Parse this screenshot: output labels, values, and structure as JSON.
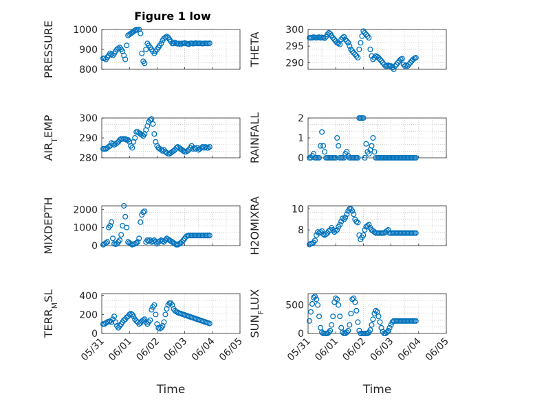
{
  "figure": {
    "title": "Figure 1 low"
  },
  "marker_color": "#0072bd",
  "grid": "dotted",
  "chart_data": [
    {
      "type": "scatter",
      "ylabel": "PRESSURE",
      "yticks": [
        "800",
        "900",
        "1000"
      ],
      "ylim": [
        800,
        1000
      ],
      "xlabel": "",
      "xticks": [],
      "x": [
        0.05,
        0.1,
        0.15,
        0.2,
        0.25,
        0.3,
        0.35,
        0.4,
        0.45,
        0.5,
        0.55,
        0.6,
        0.65,
        0.7,
        0.75,
        0.8,
        0.85,
        0.9,
        0.95,
        1.0,
        1.05,
        1.1,
        1.15,
        1.2,
        1.25,
        1.3,
        1.35,
        1.4,
        1.45,
        1.5,
        1.55,
        1.6,
        1.65,
        1.7,
        1.75,
        1.8,
        1.85,
        1.9,
        1.95,
        2.0,
        2.05,
        2.1,
        2.15,
        2.2,
        2.25,
        2.3,
        2.35,
        2.4,
        2.45,
        2.5,
        2.55,
        2.6,
        2.65,
        2.7,
        2.75,
        2.8,
        2.85,
        2.9,
        2.95,
        3.0,
        3.05,
        3.1,
        3.15,
        3.2,
        3.25,
        3.3,
        3.35,
        3.4,
        3.45,
        3.5,
        3.55,
        3.6,
        3.65,
        3.7,
        3.75,
        3.8,
        3.85,
        3.9
      ],
      "y": [
        855,
        855,
        850,
        860,
        870,
        880,
        875,
        870,
        880,
        890,
        900,
        905,
        910,
        900,
        890,
        870,
        850,
        920,
        970,
        975,
        980,
        985,
        990,
        995,
        1000,
        998,
        1000,
        980,
        880,
        840,
        830,
        900,
        930,
        920,
        910,
        900,
        890,
        880,
        890,
        900,
        910,
        920,
        930,
        945,
        955,
        960,
        965,
        960,
        950,
        940,
        930,
        930,
        935,
        930,
        928,
        930,
        925,
        930,
        930,
        932,
        930,
        928,
        926,
        930,
        931,
        929,
        930,
        932,
        930,
        930,
        931,
        930,
        929,
        930,
        931,
        930,
        930,
        931
      ],
      "xmax": 3.9
    },
    {
      "type": "scatter",
      "ylabel": "THETA",
      "yticks": [
        "290",
        "295",
        "300"
      ],
      "ylim": [
        288,
        300
      ],
      "xlabel": "",
      "xticks": [],
      "x": [
        0.05,
        0.1,
        0.15,
        0.2,
        0.25,
        0.3,
        0.35,
        0.4,
        0.45,
        0.5,
        0.55,
        0.6,
        0.65,
        0.7,
        0.75,
        0.8,
        0.85,
        0.9,
        0.95,
        1.0,
        1.05,
        1.1,
        1.15,
        1.2,
        1.25,
        1.3,
        1.35,
        1.4,
        1.45,
        1.5,
        1.55,
        1.6,
        1.65,
        1.7,
        1.75,
        1.8,
        1.85,
        1.9,
        1.95,
        2.0,
        2.05,
        2.1,
        2.15,
        2.2,
        2.25,
        2.3,
        2.35,
        2.4,
        2.45,
        2.5,
        2.55,
        2.6,
        2.65,
        2.7,
        2.75,
        2.8,
        2.85,
        2.9,
        2.95,
        3.0,
        3.05,
        3.1,
        3.15,
        3.2,
        3.25,
        3.3,
        3.35,
        3.4,
        3.45,
        3.5,
        3.55,
        3.6,
        3.65,
        3.7,
        3.75,
        3.8,
        3.85,
        3.9
      ],
      "y": [
        297.5,
        297.5,
        297.5,
        297.7,
        297.6,
        297.5,
        297.6,
        297.7,
        297.5,
        297.6,
        297.5,
        297.4,
        297.8,
        298.5,
        299,
        298.7,
        298.2,
        297.5,
        297,
        296.5,
        296,
        295.8,
        295.5,
        297,
        297.5,
        297.8,
        297,
        296.5,
        296,
        295,
        294,
        293.5,
        293,
        292.5,
        292,
        291.5,
        294,
        296,
        298,
        299.5,
        299,
        298.5,
        298,
        297.5,
        294,
        292,
        291,
        291.5,
        292,
        291.8,
        291.5,
        291,
        290.5,
        290,
        289.5,
        289,
        289,
        289.2,
        289,
        289,
        288.5,
        288,
        289,
        289.5,
        290,
        290.5,
        291,
        291.2,
        289.5,
        289,
        289.2,
        289,
        289.5,
        290,
        290.5,
        291,
        291.3,
        291.5
      ],
      "xmax": 3.9
    },
    {
      "type": "scatter",
      "ylabel": "AIR_TEMP",
      "yticks": [
        "280",
        "290",
        "300"
      ],
      "ylim": [
        280,
        300
      ],
      "xlabel": "",
      "xticks": [],
      "x": [
        0.05,
        0.1,
        0.15,
        0.2,
        0.25,
        0.3,
        0.35,
        0.4,
        0.45,
        0.5,
        0.55,
        0.6,
        0.65,
        0.7,
        0.75,
        0.8,
        0.85,
        0.9,
        0.95,
        1.0,
        1.05,
        1.1,
        1.15,
        1.2,
        1.25,
        1.3,
        1.35,
        1.4,
        1.45,
        1.5,
        1.55,
        1.6,
        1.65,
        1.7,
        1.75,
        1.8,
        1.85,
        1.9,
        1.95,
        2.0,
        2.05,
        2.1,
        2.15,
        2.2,
        2.25,
        2.3,
        2.35,
        2.4,
        2.45,
        2.5,
        2.55,
        2.6,
        2.65,
        2.7,
        2.75,
        2.8,
        2.85,
        2.9,
        2.95,
        3.0,
        3.05,
        3.1,
        3.15,
        3.2,
        3.25,
        3.3,
        3.35,
        3.4,
        3.45,
        3.5,
        3.55,
        3.6,
        3.65,
        3.7,
        3.75,
        3.8,
        3.85,
        3.9
      ],
      "y": [
        284.5,
        284.5,
        284.5,
        285,
        285.5,
        286,
        287.5,
        287,
        286.5,
        287,
        287.5,
        288,
        289,
        289.5,
        289.5,
        289.5,
        289.5,
        289,
        289,
        288,
        286,
        285,
        288,
        290,
        293,
        293,
        292.5,
        292,
        291.5,
        291,
        292,
        294,
        296,
        298,
        299,
        299.5,
        297,
        292,
        288,
        286,
        285,
        284.5,
        284,
        283.5,
        284,
        283,
        282.5,
        282,
        282,
        282.5,
        283,
        283.5,
        284,
        285,
        285.5,
        285,
        284.5,
        284,
        283.5,
        283,
        283,
        283.5,
        284,
        285,
        286,
        284.5,
        285,
        284.5,
        285,
        284,
        284.5,
        285,
        285.5,
        285,
        285.5,
        285,
        285,
        285.5
      ],
      "xmax": 3.9
    },
    {
      "type": "scatter",
      "ylabel": "RAINFALL",
      "yticks": [
        "0",
        "1",
        "2"
      ],
      "ylim": [
        0,
        2
      ],
      "xlabel": "",
      "xticks": [],
      "x": [
        0.05,
        0.1,
        0.15,
        0.2,
        0.25,
        0.3,
        0.35,
        0.4,
        0.45,
        0.5,
        0.55,
        0.6,
        0.65,
        0.7,
        0.75,
        0.8,
        0.85,
        0.9,
        0.95,
        1.0,
        1.05,
        1.1,
        1.15,
        1.2,
        1.25,
        1.3,
        1.35,
        1.4,
        1.45,
        1.5,
        1.55,
        1.6,
        1.65,
        1.7,
        1.75,
        1.8,
        1.85,
        1.9,
        1.95,
        2.0,
        2.05,
        2.1,
        2.15,
        2.2,
        2.25,
        2.3,
        2.35,
        2.4,
        2.45,
        2.5,
        2.55,
        2.6,
        2.65,
        2.7,
        2.75,
        2.8,
        2.85,
        2.9,
        2.95,
        3.0,
        3.05,
        3.1,
        3.15,
        3.2,
        3.25,
        3.3,
        3.35,
        3.4,
        3.45,
        3.5,
        3.55,
        3.6,
        3.65,
        3.7,
        3.75,
        3.8,
        3.85,
        3.9
      ],
      "y": [
        0,
        0,
        0.1,
        0.2,
        0,
        0,
        0,
        0,
        0.6,
        1.3,
        0.6,
        0.3,
        0,
        0,
        0,
        0,
        0,
        0,
        0,
        0,
        1.0,
        0.6,
        0,
        0,
        0,
        0,
        0.2,
        0.3,
        0.1,
        0,
        0,
        0,
        0,
        0,
        0,
        0,
        2,
        2,
        2,
        2,
        0,
        0.7,
        0.3,
        0.2,
        0.4,
        0.6,
        1.0,
        0.3,
        0,
        0,
        0,
        0,
        0,
        0,
        0,
        0,
        0,
        0,
        0,
        0,
        0,
        0,
        0,
        0,
        0,
        0,
        0,
        0,
        0,
        0,
        0,
        0,
        0,
        0,
        0,
        0,
        0,
        0
      ],
      "xmax": 3.9
    },
    {
      "type": "scatter",
      "ylabel": "MIXDEPTH",
      "yticks": [
        "0",
        "1000",
        "2000"
      ],
      "ylim": [
        0,
        2200
      ],
      "xlabel": "",
      "xticks": [],
      "x": [
        0.05,
        0.1,
        0.15,
        0.2,
        0.25,
        0.3,
        0.35,
        0.4,
        0.45,
        0.5,
        0.55,
        0.6,
        0.65,
        0.7,
        0.75,
        0.8,
        0.85,
        0.9,
        0.95,
        1.0,
        1.05,
        1.1,
        1.15,
        1.2,
        1.25,
        1.3,
        1.35,
        1.4,
        1.45,
        1.5,
        1.55,
        1.6,
        1.65,
        1.7,
        1.75,
        1.8,
        1.85,
        1.9,
        1.95,
        2.0,
        2.05,
        2.1,
        2.15,
        2.2,
        2.25,
        2.3,
        2.35,
        2.4,
        2.45,
        2.5,
        2.55,
        2.6,
        2.65,
        2.7,
        2.75,
        2.8,
        2.85,
        2.9,
        2.95,
        3.0,
        3.05,
        3.1,
        3.15,
        3.2,
        3.25,
        3.3,
        3.35,
        3.4,
        3.45,
        3.5,
        3.55,
        3.6,
        3.65,
        3.7,
        3.75,
        3.8,
        3.85,
        3.9
      ],
      "y": [
        50,
        100,
        150,
        200,
        1000,
        1100,
        1300,
        400,
        100,
        80,
        100,
        200,
        300,
        600,
        1100,
        2200,
        1600,
        1000,
        200,
        150,
        100,
        50,
        80,
        100,
        150,
        200,
        400,
        1300,
        1700,
        1850,
        1900,
        200,
        300,
        250,
        300,
        200,
        250,
        300,
        200,
        100,
        200,
        250,
        300,
        250,
        200,
        300,
        400,
        350,
        300,
        250,
        200,
        150,
        100,
        50,
        50,
        100,
        150,
        200,
        300,
        400,
        500,
        550,
        560,
        560,
        560,
        560,
        560,
        560,
        560,
        560,
        560,
        560,
        560,
        560,
        560,
        560,
        560,
        560
      ],
      "xmax": 3.9
    },
    {
      "type": "scatter",
      "ylabel": "H2OMIXRA",
      "yticks": [
        "8",
        "10"
      ],
      "ylim": [
        6.5,
        10.3
      ],
      "xlabel": "",
      "xticks": [],
      "x": [
        0.05,
        0.1,
        0.15,
        0.2,
        0.25,
        0.3,
        0.35,
        0.4,
        0.45,
        0.5,
        0.55,
        0.6,
        0.65,
        0.7,
        0.75,
        0.8,
        0.85,
        0.9,
        0.95,
        1.0,
        1.05,
        1.1,
        1.15,
        1.2,
        1.25,
        1.3,
        1.35,
        1.4,
        1.45,
        1.5,
        1.55,
        1.6,
        1.65,
        1.7,
        1.75,
        1.8,
        1.85,
        1.9,
        1.95,
        2.0,
        2.05,
        2.1,
        2.15,
        2.2,
        2.25,
        2.3,
        2.35,
        2.4,
        2.45,
        2.5,
        2.55,
        2.6,
        2.65,
        2.7,
        2.75,
        2.8,
        2.85,
        2.9,
        2.95,
        3.0,
        3.05,
        3.1,
        3.15,
        3.2,
        3.25,
        3.3,
        3.35,
        3.4,
        3.45,
        3.5,
        3.55,
        3.6,
        3.65,
        3.7,
        3.75,
        3.8,
        3.85,
        3.9
      ],
      "y": [
        6.6,
        6.7,
        6.7,
        6.8,
        7.0,
        7.5,
        7.8,
        7.7,
        7.8,
        7.9,
        7.6,
        7.5,
        7.6,
        7.7,
        7.9,
        8.0,
        8.2,
        8.0,
        7.8,
        7.9,
        8.0,
        8.3,
        8.5,
        8.8,
        9.1,
        9.0,
        9.2,
        9.5,
        9.8,
        10.0,
        10.0,
        9.8,
        9.5,
        9.0,
        8.8,
        8.7,
        7.5,
        7.1,
        7.3,
        7.5,
        8.0,
        8.3,
        8.4,
        8.5,
        8.2,
        8.0,
        7.9,
        7.8,
        7.7,
        7.7,
        7.7,
        7.7,
        7.7,
        7.7,
        7.7,
        7.8,
        7.9,
        8.0,
        7.7,
        7.7,
        7.7,
        7.7,
        7.7,
        7.7,
        7.7,
        7.7,
        7.7,
        7.7,
        7.7,
        7.7,
        7.7,
        7.7,
        7.7,
        7.7,
        7.7,
        7.7,
        7.7,
        7.7
      ],
      "xmax": 3.9
    },
    {
      "type": "scatter",
      "ylabel": "TERR_MSL",
      "yticks": [
        "0",
        "200",
        "400"
      ],
      "ylim": [
        0,
        420
      ],
      "xlabel": "Time",
      "xticks": [
        "05/31",
        "06/01",
        "06/02",
        "06/03",
        "06/04",
        "06/05"
      ],
      "x": [
        0.05,
        0.1,
        0.15,
        0.2,
        0.25,
        0.3,
        0.35,
        0.4,
        0.45,
        0.5,
        0.55,
        0.6,
        0.65,
        0.7,
        0.75,
        0.8,
        0.85,
        0.9,
        0.95,
        1.0,
        1.05,
        1.1,
        1.15,
        1.2,
        1.25,
        1.3,
        1.35,
        1.4,
        1.45,
        1.5,
        1.55,
        1.6,
        1.65,
        1.7,
        1.75,
        1.8,
        1.85,
        1.9,
        1.95,
        2.0,
        2.05,
        2.1,
        2.15,
        2.2,
        2.25,
        2.3,
        2.35,
        2.4,
        2.45,
        2.5,
        2.55,
        2.6,
        2.65,
        2.7,
        2.75,
        2.8,
        2.85,
        2.9,
        2.95,
        3.0,
        3.05,
        3.1,
        3.15,
        3.2,
        3.25,
        3.3,
        3.35,
        3.4,
        3.45,
        3.5,
        3.55,
        3.6,
        3.65,
        3.7,
        3.75,
        3.8,
        3.85,
        3.9
      ],
      "y": [
        100,
        100,
        110,
        120,
        125,
        130,
        120,
        150,
        180,
        120,
        80,
        60,
        80,
        100,
        120,
        140,
        150,
        170,
        180,
        200,
        210,
        200,
        180,
        150,
        130,
        120,
        100,
        110,
        130,
        140,
        150,
        120,
        100,
        120,
        140,
        250,
        280,
        300,
        200,
        100,
        60,
        50,
        60,
        80,
        120,
        200,
        260,
        300,
        320,
        320,
        300,
        260,
        240,
        230,
        220,
        215,
        210,
        205,
        200,
        195,
        190,
        185,
        180,
        175,
        170,
        165,
        160,
        155,
        150,
        145,
        140,
        135,
        130,
        125,
        120,
        115,
        110,
        105
      ],
      "xmax": 3.9
    },
    {
      "type": "scatter",
      "ylabel": "SUN_FLUX",
      "yticks": [
        "0",
        "500"
      ],
      "ylim": [
        0,
        700
      ],
      "xlabel": "Time",
      "xticks": [
        "05/31",
        "06/01",
        "06/02",
        "06/03",
        "06/04",
        "06/05"
      ],
      "x": [
        0.05,
        0.1,
        0.15,
        0.2,
        0.25,
        0.3,
        0.35,
        0.4,
        0.45,
        0.5,
        0.55,
        0.6,
        0.65,
        0.7,
        0.75,
        0.8,
        0.85,
        0.9,
        0.95,
        1.0,
        1.05,
        1.1,
        1.15,
        1.2,
        1.25,
        1.3,
        1.35,
        1.4,
        1.45,
        1.5,
        1.55,
        1.6,
        1.65,
        1.7,
        1.75,
        1.8,
        1.85,
        1.9,
        1.95,
        2.0,
        2.05,
        2.1,
        2.15,
        2.2,
        2.25,
        2.3,
        2.35,
        2.4,
        2.45,
        2.5,
        2.55,
        2.6,
        2.65,
        2.7,
        2.75,
        2.8,
        2.85,
        2.9,
        2.95,
        3.0,
        3.05,
        3.1,
        3.15,
        3.2,
        3.25,
        3.3,
        3.35,
        3.4,
        3.45,
        3.5,
        3.55,
        3.6,
        3.65,
        3.7,
        3.75,
        3.8,
        3.85,
        3.9
      ],
      "y": [
        220,
        380,
        520,
        630,
        650,
        600,
        500,
        300,
        100,
        20,
        0,
        0,
        0,
        0,
        20,
        50,
        150,
        300,
        550,
        620,
        600,
        500,
        300,
        100,
        20,
        0,
        0,
        20,
        50,
        150,
        350,
        600,
        620,
        550,
        400,
        200,
        50,
        0,
        0,
        0,
        0,
        0,
        0,
        20,
        60,
        150,
        250,
        350,
        400,
        380,
        300,
        200,
        100,
        30,
        0,
        0,
        20,
        50,
        100,
        150,
        200,
        220,
        220,
        220,
        220,
        220,
        220,
        220,
        220,
        220,
        220,
        220,
        220,
        220,
        220,
        220,
        220,
        220
      ],
      "xmax": 3.9
    }
  ]
}
